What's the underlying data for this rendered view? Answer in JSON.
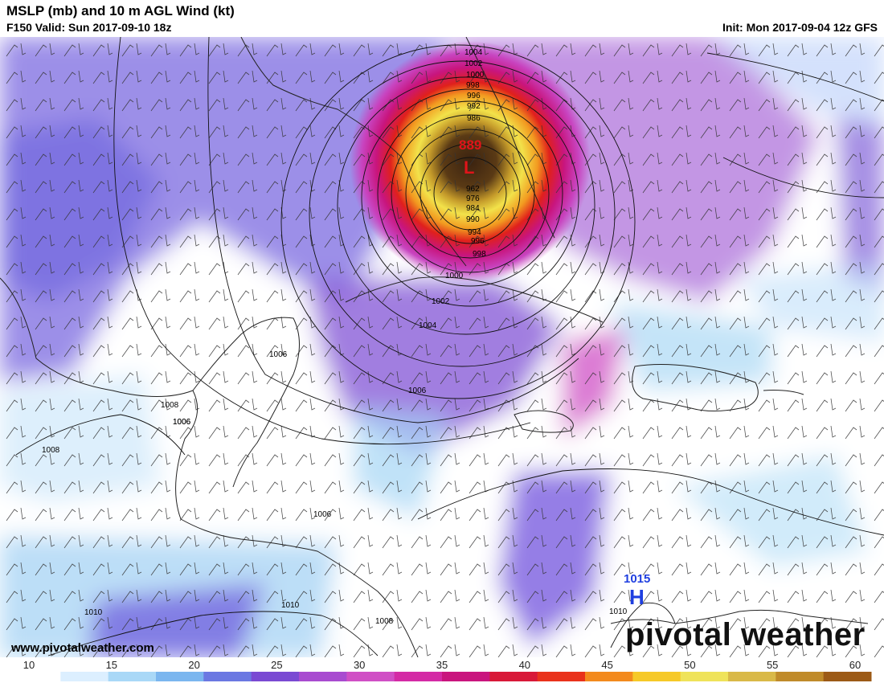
{
  "header": {
    "title": "MSLP (mb) and 10 m AGL Wind (kt)",
    "valid": "F150 Valid: Sun 2017-09-10 18z",
    "init": "Init: Mon 2017-09-04 12z GFS"
  },
  "map": {
    "storm_center_label": "L",
    "storm_min_pressure": "889",
    "high_label": "H",
    "high_pressure": "1015",
    "isobar_labels": [
      "1004",
      "1002",
      "1000",
      "998",
      "996",
      "992",
      "986",
      "962",
      "976",
      "984",
      "990",
      "994",
      "996",
      "998",
      "1000",
      "1002",
      "1004",
      "1006",
      "1006",
      "1006",
      "1008",
      "1006",
      "1008",
      "1006",
      "1010",
      "1010",
      "1008",
      "1010"
    ],
    "low_color": "#e0141a",
    "high_color": "#1f3fe0"
  },
  "footer": {
    "url": "www.pivotalweather.com",
    "logo": "pivotal weather"
  },
  "colorbar": {
    "ticks": [
      "10",
      "15",
      "20",
      "25",
      "30",
      "35",
      "40",
      "45",
      "50",
      "55",
      "60"
    ],
    "min": 10,
    "max": 62,
    "stops": [
      "#ffffff",
      "#dcefff",
      "#a9d8f7",
      "#7bb6ef",
      "#6b78e2",
      "#7a4ad3",
      "#a84bd0",
      "#d04fc5",
      "#d42aa5",
      "#c9157e",
      "#d81838",
      "#e9321b",
      "#f38a1d",
      "#f6c928",
      "#efe35a",
      "#d9b948",
      "#c08b2a",
      "#9c5a16"
    ]
  }
}
